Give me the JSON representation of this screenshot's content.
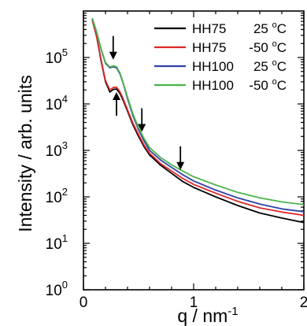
{
  "chart_data": {
    "type": "line",
    "xlabel": "q / nm",
    "xlabel_sup": "-1",
    "ylabel": "Intensity / arb. units",
    "xlim": [
      0,
      2
    ],
    "ylim": [
      1,
      1000000
    ],
    "y_scale": "log",
    "x_ticks": [
      0,
      1,
      2
    ],
    "x_tick_labels": [
      "0",
      "1",
      "2"
    ],
    "y_ticks": [
      {
        "value": 1,
        "base": "10",
        "exp": "0"
      },
      {
        "value": 10,
        "base": "10",
        "exp": "1"
      },
      {
        "value": 100,
        "base": "10",
        "exp": "2"
      },
      {
        "value": 1000,
        "base": "10",
        "exp": "3"
      },
      {
        "value": 10000,
        "base": "10",
        "exp": "4"
      },
      {
        "value": 100000,
        "base": "10",
        "exp": "5"
      }
    ],
    "legend_placement": "top-right",
    "series": [
      {
        "name": "HH75",
        "temp": "25",
        "color": "#000000",
        "x": [
          0.08,
          0.12,
          0.16,
          0.2,
          0.24,
          0.27,
          0.3,
          0.33,
          0.36,
          0.4,
          0.45,
          0.5,
          0.55,
          0.6,
          0.7,
          0.8,
          0.9,
          1.0,
          1.2,
          1.4,
          1.6,
          1.8,
          2.0
        ],
        "y": [
          650000,
          280000,
          85000,
          30000,
          18000,
          20500,
          21000,
          17000,
          12000,
          7000,
          3500,
          2000,
          1200,
          800,
          480,
          320,
          215,
          160,
          100,
          65,
          45,
          35,
          28
        ]
      },
      {
        "name": "HH75",
        "temp": "-50",
        "color": "#e0262a",
        "x": [
          0.08,
          0.12,
          0.16,
          0.2,
          0.24,
          0.27,
          0.3,
          0.33,
          0.36,
          0.4,
          0.45,
          0.5,
          0.55,
          0.6,
          0.7,
          0.8,
          0.9,
          1.0,
          1.2,
          1.4,
          1.6,
          1.8,
          2.0
        ],
        "y": [
          650000,
          280000,
          90000,
          32000,
          20000,
          22500,
          23000,
          18500,
          13000,
          7500,
          3800,
          2200,
          1300,
          870,
          520,
          360,
          250,
          185,
          120,
          80,
          58,
          47,
          40
        ]
      },
      {
        "name": "HH100",
        "temp": "25",
        "color": "#2f41a6",
        "x": [
          0.08,
          0.12,
          0.16,
          0.2,
          0.24,
          0.27,
          0.3,
          0.33,
          0.36,
          0.4,
          0.45,
          0.5,
          0.55,
          0.6,
          0.7,
          0.8,
          0.9,
          1.0,
          1.2,
          1.4,
          1.6,
          1.8,
          2.0
        ],
        "y": [
          700000,
          350000,
          150000,
          75000,
          60000,
          63000,
          60000,
          45000,
          28000,
          13000,
          5500,
          2800,
          1600,
          1000,
          620,
          430,
          300,
          220,
          140,
          95,
          70,
          55,
          48
        ]
      },
      {
        "name": "HH100",
        "temp": "-50",
        "color": "#4cb648",
        "x": [
          0.08,
          0.12,
          0.16,
          0.2,
          0.24,
          0.27,
          0.3,
          0.33,
          0.36,
          0.4,
          0.45,
          0.5,
          0.55,
          0.6,
          0.7,
          0.8,
          0.9,
          1.0,
          1.2,
          1.4,
          1.6,
          1.8,
          2.0
        ],
        "y": [
          700000,
          350000,
          155000,
          78000,
          62000,
          66000,
          63000,
          47000,
          29000,
          14000,
          6000,
          3100,
          1800,
          1150,
          700,
          490,
          360,
          270,
          180,
          125,
          95,
          78,
          68
        ]
      }
    ],
    "annotations": [
      {
        "type": "arrow-down",
        "x": 0.27,
        "y": 90000
      },
      {
        "type": "arrow-up",
        "x": 0.3,
        "y": 18000
      },
      {
        "type": "arrow-down",
        "x": 0.53,
        "y": 2500
      },
      {
        "type": "arrow-down",
        "x": 0.88,
        "y": 380
      }
    ]
  }
}
